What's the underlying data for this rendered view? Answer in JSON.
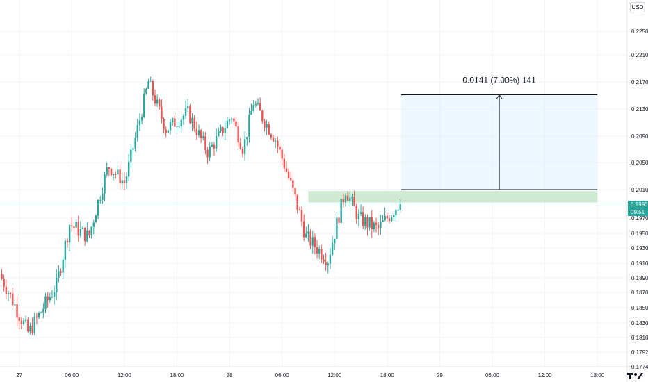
{
  "currency": "USD",
  "price_badge": {
    "price": "0.1990",
    "countdown": "09:51"
  },
  "measure_label": "0.0141 (7.00%) 141",
  "colors": {
    "up": "#26a69a",
    "down": "#ef5350",
    "grid": "#f0f3fa",
    "zone_fill": "#c8e6c9",
    "measure_fill": "#e3f2fd",
    "badge": "#26a69a",
    "price_line": "#26a69a"
  },
  "chart_data": {
    "type": "candlestick",
    "y_ticks": [
      "0.2250",
      "0.2210",
      "0.2170",
      "0.2130",
      "0.2090",
      "0.2050",
      "0.2010",
      "0.1970",
      "0.1950",
      "0.1930",
      "0.1910",
      "0.1890",
      "0.1870",
      "0.1850",
      "0.1830",
      "0.1810",
      "0.1792",
      "0.1774"
    ],
    "y_tick_values": [
      0.225,
      0.221,
      0.217,
      0.213,
      0.209,
      0.205,
      0.201,
      0.197,
      0.195,
      0.193,
      0.191,
      0.189,
      0.187,
      0.185,
      0.183,
      0.181,
      0.1792,
      0.1774
    ],
    "x_ticks": [
      "27",
      "06:00",
      "12:00",
      "18:00",
      "28",
      "06:00",
      "12:00",
      "18:00",
      "29",
      "06:00",
      "12:00",
      "18:00"
    ],
    "x_tick_hours": [
      0,
      6,
      12,
      18,
      24,
      30,
      36,
      42,
      48,
      54,
      60,
      66
    ],
    "x_range_hours": [
      -2.2,
      69.4
    ],
    "candle_hours": [
      -2.0,
      43.6
    ],
    "current_price": 0.199,
    "key_prices": [
      {
        "t": -2.0,
        "p": 0.1895
      },
      {
        "t": 1.3,
        "p": 0.1816
      },
      {
        "t": 4.5,
        "p": 0.188
      },
      {
        "t": 6.0,
        "p": 0.1962
      },
      {
        "t": 8.2,
        "p": 0.1945
      },
      {
        "t": 10.4,
        "p": 0.2045
      },
      {
        "t": 12.3,
        "p": 0.202
      },
      {
        "t": 15.0,
        "p": 0.217
      },
      {
        "t": 17.0,
        "p": 0.21
      },
      {
        "t": 19.5,
        "p": 0.2125
      },
      {
        "t": 21.8,
        "p": 0.2065
      },
      {
        "t": 24.5,
        "p": 0.212
      },
      {
        "t": 25.8,
        "p": 0.207
      },
      {
        "t": 27.0,
        "p": 0.214
      },
      {
        "t": 29.5,
        "p": 0.2085
      },
      {
        "t": 31.2,
        "p": 0.202
      },
      {
        "t": 33.0,
        "p": 0.1945
      },
      {
        "t": 35.5,
        "p": 0.1915
      },
      {
        "t": 37.5,
        "p": 0.201
      },
      {
        "t": 39.0,
        "p": 0.197
      },
      {
        "t": 41.2,
        "p": 0.1955
      },
      {
        "t": 43.6,
        "p": 0.199
      }
    ],
    "support_zone": {
      "t0": 33.0,
      "t1": 66.0,
      "p_low": 0.1992,
      "p_high": 0.2008
    },
    "measure": {
      "t0": 43.6,
      "t1": 66.0,
      "p_start": 0.201,
      "p_end": 0.2151,
      "arrow_t": 54.8
    }
  }
}
